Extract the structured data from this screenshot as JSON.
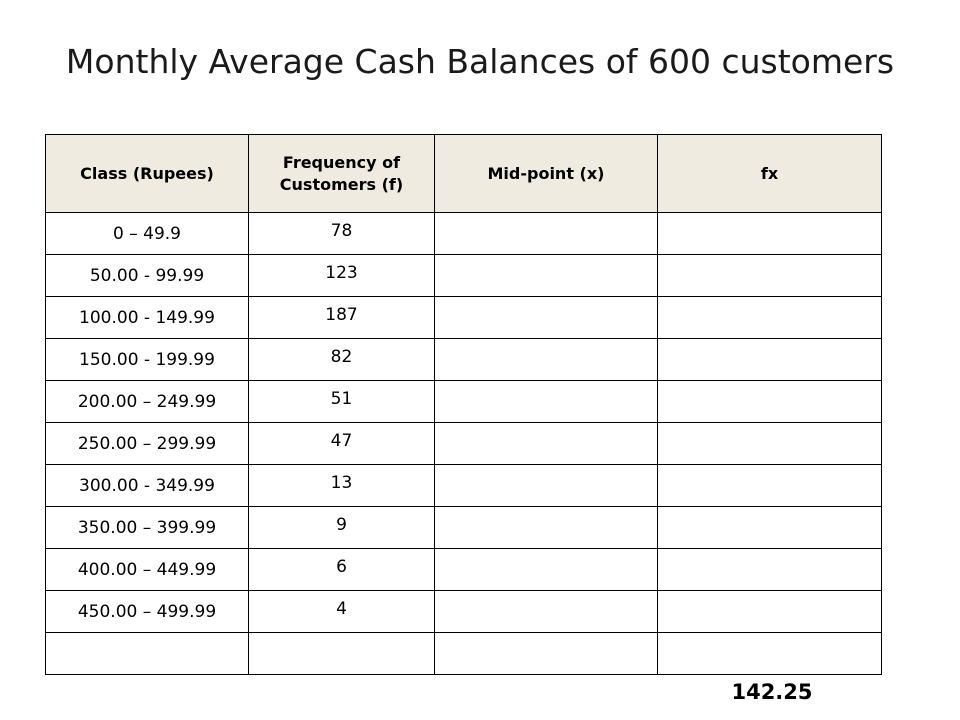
{
  "title": "Monthly Average Cash Balances of 600 customers",
  "table": {
    "headers": [
      "Class (Rupees)",
      "Frequency of Customers (f)",
      "Mid-point (x)",
      "fx"
    ],
    "rows": [
      {
        "class": "0 – 49.9",
        "frequency": "78",
        "midpoint": "",
        "fx": ""
      },
      {
        "class": "50.00 - 99.99",
        "frequency": "123",
        "midpoint": "",
        "fx": ""
      },
      {
        "class": "100.00 - 149.99",
        "frequency": "187",
        "midpoint": "",
        "fx": ""
      },
      {
        "class": "150.00 - 199.99",
        "frequency": "82",
        "midpoint": "",
        "fx": ""
      },
      {
        "class": "200.00 – 249.99",
        "frequency": "51",
        "midpoint": "",
        "fx": ""
      },
      {
        "class": "250.00 – 299.99",
        "frequency": "47",
        "midpoint": "",
        "fx": ""
      },
      {
        "class": "300.00 - 349.99",
        "frequency": "13",
        "midpoint": "",
        "fx": ""
      },
      {
        "class": "350.00 – 399.99",
        "frequency": "9",
        "midpoint": "",
        "fx": ""
      },
      {
        "class": "400.00 – 449.99",
        "frequency": "6",
        "midpoint": "",
        "fx": ""
      },
      {
        "class": "450.00 – 499.99",
        "frequency": "4",
        "midpoint": "",
        "fx": ""
      },
      {
        "class": "",
        "frequency": "",
        "midpoint": "",
        "fx": ""
      }
    ]
  },
  "total": "142.25",
  "colors": {
    "header_background": "#efebe1",
    "border": "#000000",
    "text": "#000000"
  }
}
